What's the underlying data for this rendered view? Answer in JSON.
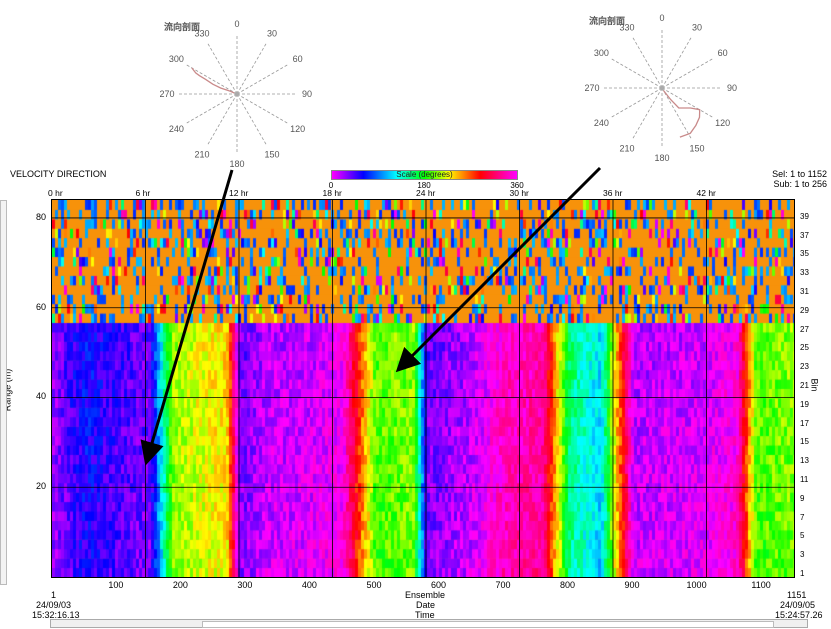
{
  "roses": [
    {
      "title": "流向剖面",
      "labels": [
        "0",
        "30",
        "60",
        "90",
        "120",
        "150",
        "180",
        "210",
        "240",
        "270",
        "300",
        "330"
      ],
      "trace": [
        [
          300,
          0.9
        ],
        [
          297,
          0.8
        ],
        [
          296,
          0.72
        ],
        [
          295,
          0.6
        ],
        [
          292,
          0.45
        ],
        [
          290,
          0.3
        ],
        [
          292,
          0.15
        ],
        [
          290,
          0.05
        ]
      ]
    },
    {
      "title": "流向剖面",
      "labels": [
        "0",
        "30",
        "60",
        "90",
        "120",
        "150",
        "180",
        "210",
        "240",
        "270",
        "300",
        "330"
      ],
      "trace": [
        [
          150,
          0.05
        ],
        [
          143,
          0.25
        ],
        [
          140,
          0.45
        ],
        [
          125,
          0.6
        ],
        [
          120,
          0.75
        ],
        [
          128,
          0.82
        ],
        [
          138,
          0.87
        ],
        [
          148,
          0.92
        ],
        [
          160,
          0.9
        ]
      ]
    }
  ],
  "header": {
    "title": "VELOCITY DIRECTION",
    "sel": "Sel: 1 to 1152",
    "sub": "Sub: 1 to 256"
  },
  "scale": {
    "title": "Scale (degrees)",
    "ticks": [
      "0",
      "180",
      "360"
    ]
  },
  "colors": {
    "magenta": "#ff00ff",
    "blue": "#0050ff",
    "cyan": "#00e0ff",
    "green": "#40ff40",
    "yellow": "#ffff00",
    "red": "#ff2000",
    "orange": "#f7920a"
  },
  "chart_data": {
    "type": "heatmap",
    "title": "VELOCITY DIRECTION",
    "ylabel": "Range (m)",
    "y2label": "Bin",
    "xlabel": [
      "Ensemble",
      "Date",
      "Time"
    ],
    "ylim": [
      0,
      84
    ],
    "xlim": [
      1,
      1151
    ],
    "hour_ticks": [
      "0 hr",
      "6 hr",
      "12 hr",
      "18 hr",
      "24 hr",
      "30 hr",
      "36 hr",
      "42 hr"
    ],
    "y_ticks": [
      20,
      40,
      60,
      80
    ],
    "bin_ticks": [
      1,
      3,
      5,
      7,
      9,
      11,
      13,
      15,
      17,
      19,
      21,
      23,
      25,
      27,
      29,
      31,
      33,
      35,
      37,
      39
    ],
    "x_ticks": [
      100,
      200,
      300,
      400,
      500,
      600,
      700,
      800,
      900,
      1000,
      1100
    ],
    "start": {
      "ensemble": "1",
      "date": "24/09/03",
      "time": "15:32:16.13"
    },
    "end": {
      "ensemble": "1151",
      "date": "24/09/05",
      "time": "15:24:57.26"
    },
    "value_scale": [
      0,
      360
    ],
    "upper_noise_above_range": 58,
    "direction_by_ensemble": [
      [
        1,
        20
      ],
      [
        50,
        55
      ],
      [
        100,
        40
      ],
      [
        150,
        28
      ],
      [
        185,
        200
      ],
      [
        200,
        210
      ],
      [
        270,
        230
      ],
      [
        290,
        30
      ],
      [
        330,
        10
      ],
      [
        400,
        5
      ],
      [
        450,
        355
      ],
      [
        500,
        190
      ],
      [
        560,
        200
      ],
      [
        580,
        30
      ],
      [
        650,
        10
      ],
      [
        700,
        340
      ],
      [
        760,
        330
      ],
      [
        800,
        150
      ],
      [
        850,
        110
      ],
      [
        870,
        220
      ],
      [
        900,
        10
      ],
      [
        1000,
        5
      ],
      [
        1060,
        350
      ],
      [
        1090,
        190
      ],
      [
        1151,
        200
      ]
    ]
  }
}
